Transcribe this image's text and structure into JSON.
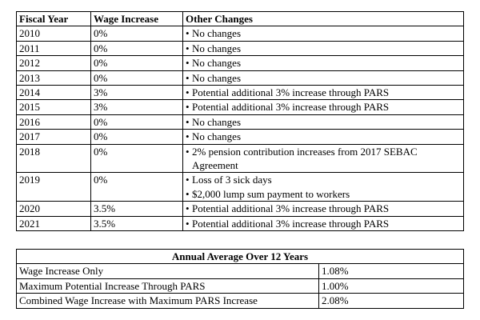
{
  "table": {
    "headers": [
      "Fiscal Year",
      "Wage Increase",
      "Other Changes"
    ],
    "rows": [
      [
        "2010",
        "0%",
        [
          "No changes"
        ]
      ],
      [
        "2011",
        "0%",
        [
          "No changes"
        ]
      ],
      [
        "2012",
        "0%",
        [
          "No changes"
        ]
      ],
      [
        "2013",
        "0%",
        [
          "No changes"
        ]
      ],
      [
        "2014",
        "3%",
        [
          "Potential additional 3% increase through PARS"
        ]
      ],
      [
        "2015",
        "3%",
        [
          "Potential additional 3% increase through PARS"
        ]
      ],
      [
        "2016",
        "0%",
        [
          "No changes"
        ]
      ],
      [
        "2017",
        "0%",
        [
          "No changes"
        ]
      ],
      [
        "2018",
        "0%",
        [
          "2% pension contribution increases from 2017 SEBAC Agreement"
        ]
      ],
      [
        "2019",
        "0%",
        [
          "Loss of 3 sick days",
          "$2,000 lump sum payment to workers"
        ]
      ],
      [
        "2020",
        "3.5%",
        [
          "Potential additional 3% increase through PARS"
        ]
      ],
      [
        "2021",
        "3.5%",
        [
          "Potential additional 3% increase through PARS"
        ]
      ]
    ]
  },
  "summary": {
    "title": "Annual Average Over 12 Years",
    "rows": [
      [
        "Wage Increase Only",
        "1.08%"
      ],
      [
        "Maximum Potential Increase Through PARS",
        "1.00%"
      ],
      [
        "Combined Wage Increase with Maximum PARS Increase",
        "2.08%"
      ]
    ]
  }
}
